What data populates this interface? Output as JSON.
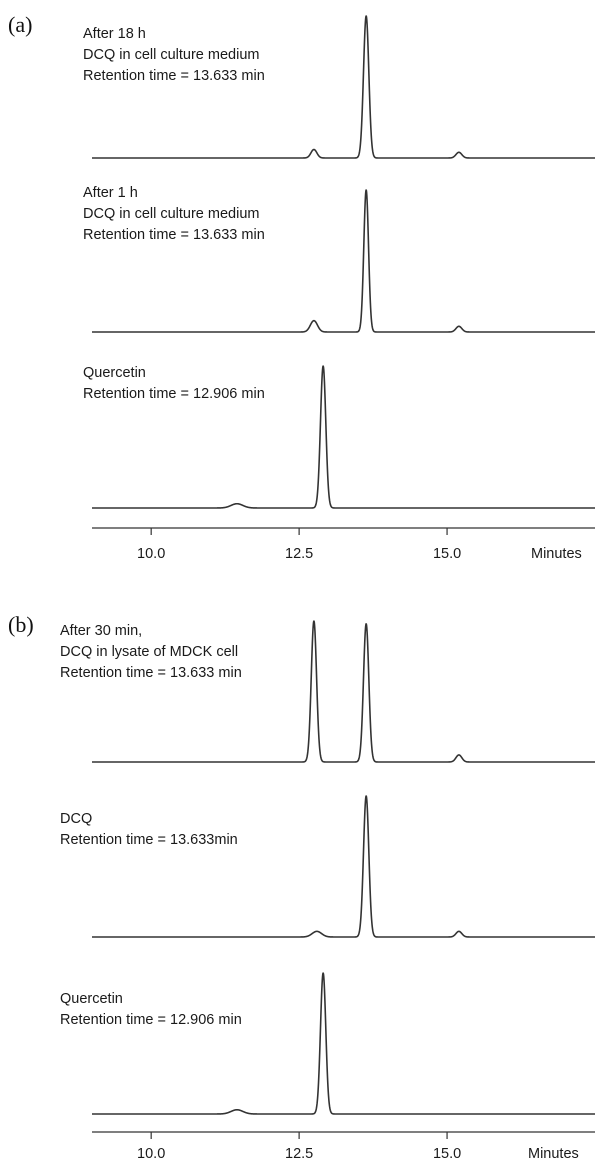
{
  "chart_data": [
    {
      "type": "line",
      "panel": "(a)",
      "xlabel": "Minutes",
      "xlim": [
        9.0,
        17.5
      ],
      "x_ticks": [
        "10.0",
        "12.5",
        "15.0"
      ],
      "x_tick_values": [
        10.0,
        12.5,
        15.0
      ],
      "traces": [
        {
          "lines": [
            "After 18 h",
            "DCQ in cell culture medium",
            "Retention time = 13.633 min"
          ],
          "peaks": [
            {
              "x": 12.75,
              "height": 0.06,
              "width": 0.05
            },
            {
              "x": 13.633,
              "height": 1.0,
              "width": 0.045
            },
            {
              "x": 15.2,
              "height": 0.04,
              "width": 0.05
            }
          ]
        },
        {
          "lines": [
            "After 1 h",
            "DCQ in cell culture medium",
            "Retention time = 13.633 min"
          ],
          "peaks": [
            {
              "x": 12.75,
              "height": 0.08,
              "width": 0.06
            },
            {
              "x": 13.633,
              "height": 1.0,
              "width": 0.04
            },
            {
              "x": 15.2,
              "height": 0.04,
              "width": 0.05
            }
          ]
        },
        {
          "lines": [
            "Quercetin",
            "Retention time = 12.906 min"
          ],
          "peaks": [
            {
              "x": 11.45,
              "height": 0.03,
              "width": 0.1
            },
            {
              "x": 12.906,
              "height": 1.0,
              "width": 0.045
            }
          ]
        }
      ]
    },
    {
      "type": "line",
      "panel": "(b)",
      "xlabel": "Minutes",
      "xlim": [
        9.0,
        17.5
      ],
      "x_ticks": [
        "10.0",
        "12.5",
        "15.0"
      ],
      "x_tick_values": [
        10.0,
        12.5,
        15.0
      ],
      "traces": [
        {
          "lines": [
            "After 30 min,",
            "DCQ in lysate of MDCK cell",
            "Retention time = 13.633 min"
          ],
          "peaks": [
            {
              "x": 12.75,
              "height": 1.0,
              "width": 0.045
            },
            {
              "x": 13.633,
              "height": 0.98,
              "width": 0.045
            },
            {
              "x": 15.2,
              "height": 0.05,
              "width": 0.05
            }
          ]
        },
        {
          "lines": [
            "DCQ",
            "Retention time = 13.633min"
          ],
          "peaks": [
            {
              "x": 12.8,
              "height": 0.04,
              "width": 0.08
            },
            {
              "x": 13.633,
              "height": 1.0,
              "width": 0.045
            },
            {
              "x": 15.2,
              "height": 0.04,
              "width": 0.05
            }
          ]
        },
        {
          "lines": [
            "Quercetin",
            "Retention time = 12.906 min"
          ],
          "peaks": [
            {
              "x": 11.45,
              "height": 0.03,
              "width": 0.1
            },
            {
              "x": 12.906,
              "height": 1.0,
              "width": 0.045
            }
          ]
        }
      ]
    }
  ]
}
